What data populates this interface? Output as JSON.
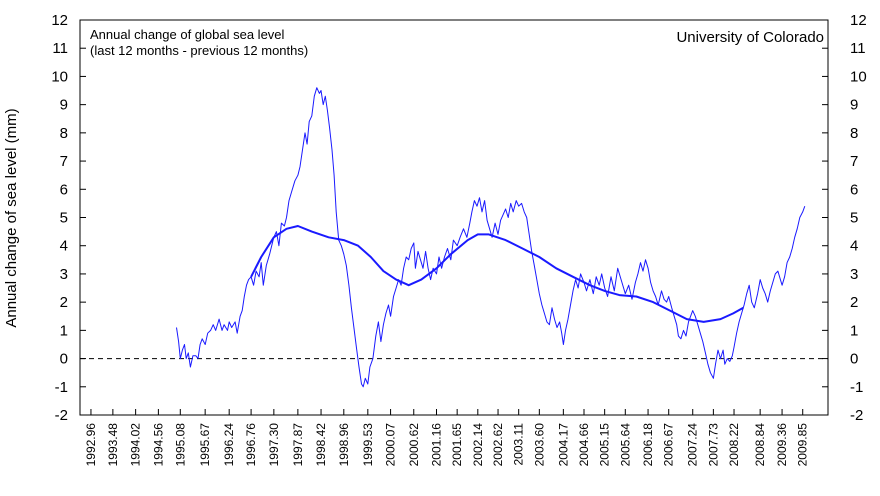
{
  "chart_data": {
    "type": "line",
    "title": "",
    "annotation_line1": "Annual change of global sea level",
    "annotation_line2": "(last 12 months - previous 12 months)",
    "credit": "University of Colorado",
    "ylabel": "Annual change of sea level (mm)",
    "xlabel": "",
    "xlim": [
      1992.7,
      2010.45
    ],
    "ylim": [
      -2,
      12
    ],
    "yticks": [
      -2,
      -1,
      0,
      1,
      2,
      3,
      4,
      5,
      6,
      7,
      8,
      9,
      10,
      11,
      12
    ],
    "xticks": [
      "1992.96",
      "1993.48",
      "1994.02",
      "1994.56",
      "1995.08",
      "1995.67",
      "1996.24",
      "1996.76",
      "1997.30",
      "1997.87",
      "1998.42",
      "1998.96",
      "1999.53",
      "2000.07",
      "2000.62",
      "2001.16",
      "2001.65",
      "2002.14",
      "2002.62",
      "2003.11",
      "2003.60",
      "2004.17",
      "2004.66",
      "2005.15",
      "2005.64",
      "2006.18",
      "2006.67",
      "2007.24",
      "2007.73",
      "2008.22",
      "2008.84",
      "2009.36",
      "2009.85"
    ],
    "zero_line": "dashed",
    "grid": false,
    "series": [
      {
        "color": "#1a1aff",
        "width": 1,
        "points": [
          [
            1994.99,
            1.1
          ],
          [
            1995.04,
            0.6
          ],
          [
            1995.08,
            0.0
          ],
          [
            1995.13,
            0.3
          ],
          [
            1995.18,
            0.5
          ],
          [
            1995.22,
            0.0
          ],
          [
            1995.27,
            0.2
          ],
          [
            1995.32,
            -0.3
          ],
          [
            1995.38,
            0.1
          ],
          [
            1995.45,
            0.1
          ],
          [
            1995.5,
            0.0
          ],
          [
            1995.55,
            0.5
          ],
          [
            1995.6,
            0.7
          ],
          [
            1995.67,
            0.5
          ],
          [
            1995.73,
            0.9
          ],
          [
            1995.8,
            1.0
          ],
          [
            1995.86,
            1.2
          ],
          [
            1995.92,
            1.0
          ],
          [
            1996.0,
            1.4
          ],
          [
            1996.07,
            1.0
          ],
          [
            1996.12,
            1.2
          ],
          [
            1996.2,
            1.0
          ],
          [
            1996.24,
            1.3
          ],
          [
            1996.3,
            1.1
          ],
          [
            1996.38,
            1.3
          ],
          [
            1996.43,
            0.9
          ],
          [
            1996.5,
            1.5
          ],
          [
            1996.55,
            1.7
          ],
          [
            1996.6,
            2.2
          ],
          [
            1996.65,
            2.6
          ],
          [
            1996.7,
            2.8
          ],
          [
            1996.76,
            2.9
          ],
          [
            1996.82,
            2.6
          ],
          [
            1996.88,
            3.1
          ],
          [
            1996.95,
            2.9
          ],
          [
            1997.0,
            3.4
          ],
          [
            1997.05,
            2.6
          ],
          [
            1997.12,
            3.3
          ],
          [
            1997.2,
            3.7
          ],
          [
            1997.3,
            4.3
          ],
          [
            1997.36,
            4.5
          ],
          [
            1997.42,
            4.0
          ],
          [
            1997.48,
            4.8
          ],
          [
            1997.55,
            4.7
          ],
          [
            1997.6,
            5.0
          ],
          [
            1997.66,
            5.6
          ],
          [
            1997.72,
            5.9
          ],
          [
            1997.8,
            6.3
          ],
          [
            1997.87,
            6.5
          ],
          [
            1997.92,
            6.8
          ],
          [
            1997.98,
            7.4
          ],
          [
            1998.04,
            8.0
          ],
          [
            1998.09,
            7.6
          ],
          [
            1998.14,
            8.4
          ],
          [
            1998.2,
            8.6
          ],
          [
            1998.26,
            9.3
          ],
          [
            1998.32,
            9.6
          ],
          [
            1998.38,
            9.4
          ],
          [
            1998.42,
            9.5
          ],
          [
            1998.47,
            9.0
          ],
          [
            1998.52,
            9.3
          ],
          [
            1998.57,
            8.8
          ],
          [
            1998.62,
            8.2
          ],
          [
            1998.68,
            7.4
          ],
          [
            1998.73,
            6.5
          ],
          [
            1998.78,
            5.2
          ],
          [
            1998.84,
            4.2
          ],
          [
            1998.9,
            4.0
          ],
          [
            1998.96,
            3.7
          ],
          [
            1999.02,
            3.3
          ],
          [
            1999.08,
            2.6
          ],
          [
            1999.14,
            1.8
          ],
          [
            1999.2,
            1.1
          ],
          [
            1999.26,
            0.4
          ],
          [
            1999.32,
            -0.3
          ],
          [
            1999.38,
            -0.9
          ],
          [
            1999.42,
            -1.0
          ],
          [
            1999.47,
            -0.7
          ],
          [
            1999.53,
            -0.9
          ],
          [
            1999.58,
            -0.3
          ],
          [
            1999.65,
            0.0
          ],
          [
            1999.72,
            0.8
          ],
          [
            1999.78,
            1.3
          ],
          [
            1999.84,
            0.6
          ],
          [
            1999.9,
            1.2
          ],
          [
            1999.96,
            1.6
          ],
          [
            2000.02,
            1.9
          ],
          [
            2000.07,
            1.5
          ],
          [
            2000.14,
            2.2
          ],
          [
            2000.2,
            2.5
          ],
          [
            2000.26,
            2.8
          ],
          [
            2000.32,
            2.6
          ],
          [
            2000.38,
            3.2
          ],
          [
            2000.44,
            3.6
          ],
          [
            2000.5,
            3.5
          ],
          [
            2000.56,
            3.9
          ],
          [
            2000.62,
            4.1
          ],
          [
            2000.66,
            3.2
          ],
          [
            2000.72,
            3.8
          ],
          [
            2000.78,
            3.5
          ],
          [
            2000.84,
            3.2
          ],
          [
            2000.9,
            3.8
          ],
          [
            2000.96,
            3.2
          ],
          [
            2001.02,
            2.8
          ],
          [
            2001.08,
            3.2
          ],
          [
            2001.16,
            3.0
          ],
          [
            2001.22,
            3.6
          ],
          [
            2001.28,
            3.2
          ],
          [
            2001.35,
            3.6
          ],
          [
            2001.42,
            3.9
          ],
          [
            2001.5,
            3.5
          ],
          [
            2001.56,
            4.2
          ],
          [
            2001.65,
            4.0
          ],
          [
            2001.72,
            4.3
          ],
          [
            2001.8,
            4.6
          ],
          [
            2001.88,
            4.3
          ],
          [
            2001.95,
            4.8
          ],
          [
            2002.0,
            5.2
          ],
          [
            2002.06,
            5.6
          ],
          [
            2002.12,
            5.4
          ],
          [
            2002.18,
            5.7
          ],
          [
            2002.24,
            5.2
          ],
          [
            2002.3,
            5.6
          ],
          [
            2002.36,
            4.9
          ],
          [
            2002.42,
            4.6
          ],
          [
            2002.48,
            4.3
          ],
          [
            2002.55,
            4.8
          ],
          [
            2002.62,
            4.4
          ],
          [
            2002.68,
            4.9
          ],
          [
            2002.74,
            5.1
          ],
          [
            2002.8,
            5.3
          ],
          [
            2002.86,
            5.0
          ],
          [
            2002.92,
            5.5
          ],
          [
            2002.98,
            5.2
          ],
          [
            2003.05,
            5.6
          ],
          [
            2003.11,
            5.4
          ],
          [
            2003.18,
            5.5
          ],
          [
            2003.24,
            5.2
          ],
          [
            2003.3,
            5.0
          ],
          [
            2003.36,
            4.4
          ],
          [
            2003.42,
            3.8
          ],
          [
            2003.48,
            3.3
          ],
          [
            2003.54,
            2.8
          ],
          [
            2003.6,
            2.3
          ],
          [
            2003.66,
            1.9
          ],
          [
            2003.72,
            1.6
          ],
          [
            2003.78,
            1.3
          ],
          [
            2003.84,
            1.2
          ],
          [
            2003.9,
            1.8
          ],
          [
            2003.96,
            1.4
          ],
          [
            2004.02,
            1.1
          ],
          [
            2004.08,
            1.3
          ],
          [
            2004.13,
            0.9
          ],
          [
            2004.17,
            0.5
          ],
          [
            2004.22,
            1.0
          ],
          [
            2004.28,
            1.4
          ],
          [
            2004.34,
            1.9
          ],
          [
            2004.4,
            2.4
          ],
          [
            2004.46,
            2.8
          ],
          [
            2004.52,
            2.5
          ],
          [
            2004.58,
            3.0
          ],
          [
            2004.66,
            2.7
          ],
          [
            2004.72,
            2.4
          ],
          [
            2004.8,
            2.8
          ],
          [
            2004.88,
            2.3
          ],
          [
            2004.95,
            2.9
          ],
          [
            2005.02,
            2.6
          ],
          [
            2005.08,
            3.0
          ],
          [
            2005.15,
            2.5
          ],
          [
            2005.22,
            2.2
          ],
          [
            2005.3,
            2.9
          ],
          [
            2005.38,
            2.4
          ],
          [
            2005.46,
            3.2
          ],
          [
            2005.54,
            2.8
          ],
          [
            2005.64,
            2.3
          ],
          [
            2005.72,
            2.6
          ],
          [
            2005.8,
            2.1
          ],
          [
            2005.88,
            2.7
          ],
          [
            2005.94,
            3.0
          ],
          [
            2006.0,
            3.4
          ],
          [
            2006.06,
            3.1
          ],
          [
            2006.12,
            3.5
          ],
          [
            2006.18,
            3.2
          ],
          [
            2006.24,
            2.7
          ],
          [
            2006.3,
            2.4
          ],
          [
            2006.36,
            2.2
          ],
          [
            2006.42,
            1.9
          ],
          [
            2006.5,
            2.4
          ],
          [
            2006.56,
            2.1
          ],
          [
            2006.62,
            2.0
          ],
          [
            2006.67,
            2.2
          ],
          [
            2006.74,
            1.8
          ],
          [
            2006.8,
            1.5
          ],
          [
            2006.86,
            1.2
          ],
          [
            2006.9,
            0.8
          ],
          [
            2006.96,
            0.7
          ],
          [
            2007.02,
            1.0
          ],
          [
            2007.08,
            0.8
          ],
          [
            2007.14,
            1.3
          ],
          [
            2007.24,
            1.7
          ],
          [
            2007.3,
            1.5
          ],
          [
            2007.36,
            1.2
          ],
          [
            2007.42,
            0.9
          ],
          [
            2007.48,
            0.6
          ],
          [
            2007.54,
            0.2
          ],
          [
            2007.6,
            -0.2
          ],
          [
            2007.66,
            -0.5
          ],
          [
            2007.73,
            -0.7
          ],
          [
            2007.78,
            -0.2
          ],
          [
            2007.84,
            0.3
          ],
          [
            2007.9,
            0.0
          ],
          [
            2007.96,
            0.3
          ],
          [
            2008.0,
            -0.2
          ],
          [
            2008.06,
            0.0
          ],
          [
            2008.12,
            -0.1
          ],
          [
            2008.18,
            0.1
          ],
          [
            2008.22,
            0.4
          ],
          [
            2008.28,
            0.9
          ],
          [
            2008.34,
            1.3
          ],
          [
            2008.4,
            1.6
          ],
          [
            2008.46,
            1.9
          ],
          [
            2008.52,
            2.3
          ],
          [
            2008.58,
            2.6
          ],
          [
            2008.64,
            2.0
          ],
          [
            2008.7,
            1.8
          ],
          [
            2008.78,
            2.3
          ],
          [
            2008.84,
            2.8
          ],
          [
            2008.9,
            2.5
          ],
          [
            2008.96,
            2.3
          ],
          [
            2009.02,
            2.0
          ],
          [
            2009.08,
            2.4
          ],
          [
            2009.14,
            2.7
          ],
          [
            2009.2,
            3.0
          ],
          [
            2009.26,
            3.1
          ],
          [
            2009.32,
            2.8
          ],
          [
            2009.36,
            2.6
          ],
          [
            2009.42,
            2.9
          ],
          [
            2009.48,
            3.4
          ],
          [
            2009.54,
            3.6
          ],
          [
            2009.6,
            3.9
          ],
          [
            2009.66,
            4.3
          ],
          [
            2009.72,
            4.6
          ],
          [
            2009.78,
            5.0
          ],
          [
            2009.85,
            5.2
          ],
          [
            2009.9,
            5.4
          ]
        ]
      },
      {
        "color": "#1a1aff",
        "width": 2,
        "points": [
          [
            1996.76,
            2.9
          ],
          [
            1997.0,
            3.6
          ],
          [
            1997.3,
            4.3
          ],
          [
            1997.6,
            4.6
          ],
          [
            1997.87,
            4.7
          ],
          [
            1998.2,
            4.5
          ],
          [
            1998.6,
            4.3
          ],
          [
            1998.96,
            4.2
          ],
          [
            1999.3,
            4.0
          ],
          [
            1999.6,
            3.6
          ],
          [
            1999.9,
            3.1
          ],
          [
            2000.2,
            2.8
          ],
          [
            2000.5,
            2.6
          ],
          [
            2000.8,
            2.8
          ],
          [
            2001.16,
            3.2
          ],
          [
            2001.5,
            3.7
          ],
          [
            2001.9,
            4.2
          ],
          [
            2002.14,
            4.4
          ],
          [
            2002.4,
            4.4
          ],
          [
            2002.8,
            4.2
          ],
          [
            2003.2,
            3.9
          ],
          [
            2003.6,
            3.6
          ],
          [
            2004.0,
            3.2
          ],
          [
            2004.4,
            2.9
          ],
          [
            2004.8,
            2.6
          ],
          [
            2005.15,
            2.4
          ],
          [
            2005.5,
            2.25
          ],
          [
            2005.9,
            2.2
          ],
          [
            2006.3,
            2.0
          ],
          [
            2006.7,
            1.7
          ],
          [
            2007.1,
            1.4
          ],
          [
            2007.5,
            1.3
          ],
          [
            2007.9,
            1.4
          ],
          [
            2008.2,
            1.6
          ],
          [
            2008.44,
            1.8
          ]
        ]
      }
    ]
  }
}
